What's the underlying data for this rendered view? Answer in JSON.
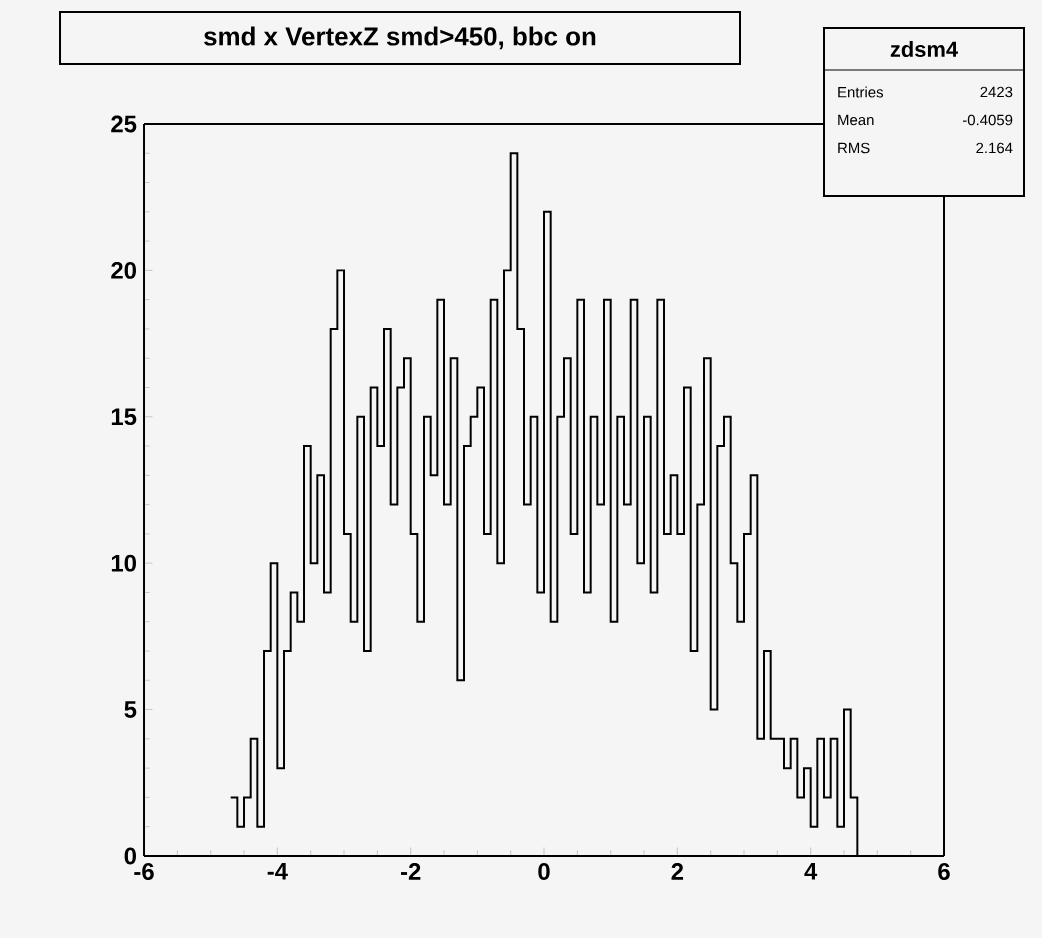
{
  "chart_data": {
    "type": "histogram",
    "title": "smd x VertexZ smd>450, bbc on",
    "annotations": [
      "zdsm4",
      "Entries",
      "2423",
      "Mean",
      "-0.4059",
      "RMS",
      "2.164"
    ],
    "bins": [
      -4.7,
      -4.6,
      -4.5,
      -4.4,
      -4.3,
      -4.2,
      -4.1,
      -4.0,
      -3.9,
      -3.8,
      -3.7,
      -3.6,
      -3.5,
      -3.4,
      -3.3,
      -3.2,
      -3.1,
      -3.0,
      -2.9,
      -2.8,
      -2.7,
      -2.6,
      -2.5,
      -2.4,
      -2.3,
      -2.2,
      -2.1,
      -2.0,
      -1.9,
      -1.8,
      -1.7,
      -1.6,
      -1.5,
      -1.4,
      -1.3,
      -1.2,
      -1.1,
      -1.0,
      -0.9,
      -0.8,
      -0.7,
      -0.6,
      -0.5,
      -0.4,
      -0.3,
      -0.2,
      -0.1,
      0.0,
      0.1,
      0.2,
      0.3,
      0.4,
      0.5,
      0.6,
      0.7,
      0.8,
      0.9,
      1.0,
      1.1,
      1.2,
      1.3,
      1.4,
      1.5,
      1.6,
      1.7,
      1.8,
      1.9,
      2.0,
      2.1,
      2.2,
      2.3,
      2.4,
      2.5,
      2.6,
      2.7,
      2.8,
      2.9,
      3.0,
      3.1,
      3.2,
      3.3,
      3.4,
      3.5,
      3.6,
      3.7,
      3.8,
      3.9,
      4.0,
      4.1,
      4.2,
      4.3,
      4.4,
      4.5,
      4.6,
      4.7,
      4.8
    ],
    "values": [
      2,
      1,
      2,
      4,
      1,
      7,
      10,
      3,
      7,
      9,
      8,
      14,
      10,
      13,
      9,
      18,
      20,
      11,
      8,
      15,
      7,
      16,
      14,
      18,
      12,
      16,
      17,
      11,
      8,
      15,
      13,
      19,
      12,
      17,
      6,
      14,
      15,
      16,
      11,
      19,
      10,
      20,
      24,
      18,
      12,
      15,
      9,
      22,
      8,
      15,
      17,
      11,
      19,
      9,
      15,
      12,
      19,
      8,
      15,
      12,
      19,
      10,
      15,
      9,
      19,
      11,
      13,
      11,
      16,
      7,
      12,
      17,
      5,
      14,
      15,
      10,
      8,
      11,
      13,
      4,
      7,
      4,
      4,
      3,
      4,
      2,
      3,
      1,
      4,
      2,
      4,
      1,
      5,
      2,
      0
    ],
    "color": "#000000",
    "xlim": [
      -6,
      6
    ],
    "xticks": [
      -6,
      -4,
      -2,
      0,
      2,
      4,
      6
    ],
    "ylim": [
      0,
      25
    ],
    "yticks": [
      0,
      5,
      10,
      15,
      20,
      25
    ],
    "grid": false
  }
}
